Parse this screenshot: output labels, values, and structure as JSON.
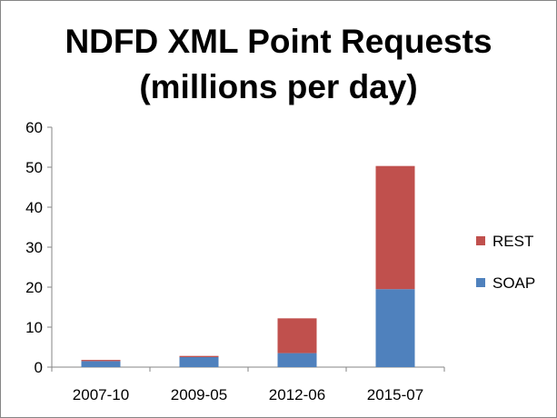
{
  "chart_data": {
    "type": "bar",
    "stacked": true,
    "title_lines": [
      "NDFD XML Point Requests",
      "(millions per day)"
    ],
    "categories": [
      "2007-10",
      "2009-05",
      "2012-06",
      "2015-07"
    ],
    "series": [
      {
        "name": "SOAP",
        "color": "#4f81bd",
        "values": [
          1.5,
          2.5,
          3.5,
          19.5
        ]
      },
      {
        "name": "REST",
        "color": "#c0504d",
        "values": [
          0.3,
          0.3,
          8.7,
          30.8
        ]
      }
    ],
    "ylim": [
      0,
      60
    ],
    "yticks": [
      0,
      10,
      20,
      30,
      40,
      50,
      60
    ],
    "grid": false,
    "legend_position": "right"
  }
}
